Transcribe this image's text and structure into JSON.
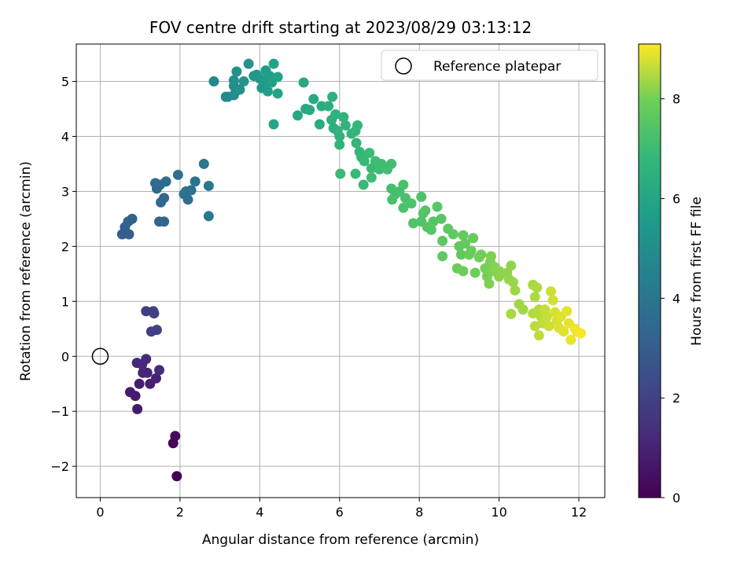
{
  "chart_data": {
    "type": "scatter",
    "title": "FOV centre drift starting at 2023/08/29 03:13:12",
    "xlabel": "Angular distance from reference (arcmin)",
    "ylabel": "Rotation from reference (arcmin)",
    "xlim": [
      -0.6,
      12.65
    ],
    "ylim": [
      -2.57,
      5.68
    ],
    "xticks": [
      0,
      2,
      4,
      6,
      8,
      10,
      12
    ],
    "yticks": [
      -2,
      -1,
      0,
      1,
      2,
      3,
      4,
      5
    ],
    "xtick_labels": [
      "0",
      "2",
      "4",
      "6",
      "8",
      "10",
      "12"
    ],
    "ytick_labels": [
      "−2",
      "−1",
      "0",
      "1",
      "2",
      "3",
      "4",
      "5"
    ],
    "grid": true,
    "legend": {
      "placement": "top-right",
      "entries": [
        "Reference platepar"
      ]
    },
    "reference_point": {
      "x": 0,
      "y": 0,
      "label": "Reference platepar"
    },
    "colorbar": {
      "label": "Hours from first FF file",
      "range": [
        0,
        9.1
      ],
      "ticks": [
        0,
        2,
        4,
        6,
        8
      ],
      "tick_labels": [
        "0",
        "2",
        "4",
        "6",
        "8"
      ],
      "colormap": "viridis"
    },
    "points": [
      [
        1.92,
        -2.18,
        0.0
      ],
      [
        1.83,
        -1.58,
        0.15
      ],
      [
        1.88,
        -1.45,
        0.2
      ],
      [
        0.93,
        -0.96,
        0.7
      ],
      [
        0.88,
        -0.72,
        0.75
      ],
      [
        0.75,
        -0.65,
        0.8
      ],
      [
        0.98,
        -0.5,
        0.85
      ],
      [
        1.25,
        -0.5,
        0.9
      ],
      [
        1.4,
        -0.4,
        0.95
      ],
      [
        1.07,
        -0.3,
        1.0
      ],
      [
        1.18,
        -0.3,
        1.05
      ],
      [
        0.92,
        -0.12,
        1.1
      ],
      [
        1.05,
        -0.15,
        1.15
      ],
      [
        1.15,
        -0.05,
        1.2
      ],
      [
        1.48,
        -0.25,
        1.25
      ],
      [
        1.15,
        0.82,
        1.8
      ],
      [
        1.33,
        0.82,
        1.85
      ],
      [
        1.35,
        0.78,
        1.9
      ],
      [
        1.28,
        0.45,
        1.95
      ],
      [
        1.42,
        0.48,
        2.0
      ],
      [
        0.55,
        2.22,
        3.0
      ],
      [
        0.72,
        2.22,
        3.05
      ],
      [
        0.62,
        2.35,
        3.1
      ],
      [
        0.7,
        2.45,
        3.15
      ],
      [
        0.8,
        2.5,
        3.2
      ],
      [
        1.48,
        2.45,
        3.3
      ],
      [
        1.6,
        2.45,
        3.35
      ],
      [
        1.52,
        2.8,
        3.4
      ],
      [
        1.6,
        2.88,
        3.45
      ],
      [
        1.42,
        3.05,
        3.5
      ],
      [
        1.5,
        3.12,
        3.55
      ],
      [
        1.38,
        3.15,
        3.6
      ],
      [
        1.65,
        3.18,
        3.65
      ],
      [
        1.95,
        3.3,
        3.7
      ],
      [
        2.1,
        2.95,
        3.75
      ],
      [
        2.2,
        2.85,
        3.8
      ],
      [
        2.15,
        3.0,
        3.85
      ],
      [
        2.28,
        3.02,
        3.9
      ],
      [
        2.38,
        3.18,
        3.95
      ],
      [
        2.72,
        3.1,
        4.0
      ],
      [
        2.6,
        3.5,
        4.05
      ],
      [
        2.72,
        2.55,
        4.1
      ],
      [
        2.85,
        5.0,
        4.8
      ],
      [
        3.15,
        4.72,
        4.85
      ],
      [
        3.2,
        4.72,
        4.9
      ],
      [
        3.35,
        4.75,
        4.95
      ],
      [
        3.4,
        4.82,
        5.0
      ],
      [
        3.35,
        4.92,
        5.05
      ],
      [
        3.5,
        4.85,
        5.1
      ],
      [
        3.35,
        5.02,
        5.15
      ],
      [
        3.42,
        5.18,
        5.2
      ],
      [
        3.6,
        5.0,
        5.25
      ],
      [
        3.72,
        5.32,
        5.3
      ],
      [
        3.85,
        5.1,
        5.35
      ],
      [
        3.92,
        5.12,
        5.4
      ],
      [
        4.0,
        5.05,
        5.45
      ],
      [
        4.05,
        4.88,
        5.5
      ],
      [
        4.1,
        5.02,
        5.55
      ],
      [
        4.15,
        5.2,
        5.6
      ],
      [
        4.18,
        4.95,
        5.65
      ],
      [
        4.2,
        4.82,
        5.7
      ],
      [
        4.25,
        5.1,
        5.75
      ],
      [
        4.3,
        4.98,
        5.8
      ],
      [
        4.35,
        5.32,
        5.85
      ],
      [
        4.45,
        5.08,
        5.9
      ],
      [
        4.45,
        4.78,
        5.95
      ],
      [
        4.35,
        4.22,
        6.0
      ],
      [
        4.95,
        4.38,
        6.05
      ],
      [
        5.1,
        4.98,
        6.1
      ],
      [
        5.15,
        4.5,
        6.15
      ],
      [
        5.25,
        4.48,
        6.2
      ],
      [
        5.35,
        4.68,
        6.25
      ],
      [
        5.5,
        4.22,
        6.3
      ],
      [
        5.55,
        4.55,
        6.35
      ],
      [
        5.72,
        4.55,
        6.4
      ],
      [
        5.82,
        4.72,
        6.45
      ],
      [
        5.8,
        4.3,
        6.5
      ],
      [
        5.85,
        4.15,
        6.52
      ],
      [
        5.9,
        4.4,
        6.55
      ],
      [
        5.95,
        4.1,
        6.58
      ],
      [
        6.0,
        4.0,
        6.6
      ],
      [
        6.0,
        3.85,
        6.63
      ],
      [
        6.1,
        4.35,
        6.65
      ],
      [
        6.15,
        4.2,
        6.68
      ],
      [
        6.3,
        4.05,
        6.7
      ],
      [
        6.4,
        4.1,
        6.72
      ],
      [
        6.42,
        3.88,
        6.75
      ],
      [
        6.45,
        4.2,
        6.78
      ],
      [
        6.5,
        3.72,
        6.8
      ],
      [
        6.55,
        3.62,
        6.82
      ],
      [
        6.62,
        3.55,
        6.85
      ],
      [
        6.4,
        3.32,
        6.87
      ],
      [
        6.02,
        3.32,
        6.9
      ],
      [
        6.6,
        3.12,
        6.92
      ],
      [
        6.75,
        3.7,
        6.95
      ],
      [
        6.8,
        3.42,
        6.97
      ],
      [
        6.9,
        3.55,
        7.0
      ],
      [
        7.0,
        3.4,
        7.02
      ],
      [
        7.05,
        3.5,
        7.05
      ],
      [
        6.8,
        3.25,
        7.07
      ],
      [
        7.2,
        3.4,
        7.1
      ],
      [
        7.3,
        3.5,
        7.12
      ],
      [
        7.3,
        3.05,
        7.15
      ],
      [
        7.4,
        2.95,
        7.17
      ],
      [
        7.5,
        3.0,
        7.2
      ],
      [
        7.32,
        2.85,
        7.22
      ],
      [
        7.6,
        3.12,
        7.25
      ],
      [
        7.65,
        2.88,
        7.27
      ],
      [
        7.6,
        2.7,
        7.3
      ],
      [
        7.8,
        2.78,
        7.32
      ],
      [
        7.85,
        2.42,
        7.35
      ],
      [
        8.05,
        2.9,
        7.37
      ],
      [
        8.1,
        2.6,
        7.4
      ],
      [
        8.05,
        2.45,
        7.42
      ],
      [
        8.15,
        2.65,
        7.45
      ],
      [
        8.2,
        2.35,
        7.47
      ],
      [
        8.3,
        2.3,
        7.5
      ],
      [
        8.35,
        2.45,
        7.52
      ],
      [
        8.45,
        2.72,
        7.55
      ],
      [
        8.55,
        2.5,
        7.57
      ],
      [
        8.58,
        2.1,
        7.6
      ],
      [
        8.72,
        2.32,
        7.62
      ],
      [
        8.85,
        2.22,
        7.65
      ],
      [
        8.58,
        1.82,
        7.67
      ],
      [
        9.0,
        2.0,
        7.7
      ],
      [
        9.05,
        1.85,
        7.72
      ],
      [
        9.1,
        2.2,
        7.75
      ],
      [
        9.15,
        2.05,
        7.77
      ],
      [
        9.3,
        1.92,
        7.8
      ],
      [
        9.35,
        2.15,
        7.82
      ],
      [
        9.25,
        1.85,
        7.85
      ],
      [
        8.95,
        1.6,
        7.87
      ],
      [
        9.1,
        1.55,
        7.9
      ],
      [
        9.4,
        1.52,
        7.92
      ],
      [
        9.5,
        1.8,
        7.95
      ],
      [
        9.55,
        1.85,
        7.97
      ],
      [
        9.65,
        1.6,
        8.0
      ],
      [
        9.7,
        1.45,
        8.02
      ],
      [
        9.78,
        1.72,
        8.05
      ],
      [
        9.8,
        1.82,
        8.07
      ],
      [
        9.75,
        1.32,
        8.1
      ],
      [
        9.85,
        1.55,
        8.12
      ],
      [
        9.9,
        1.62,
        8.15
      ],
      [
        10.0,
        1.55,
        8.17
      ],
      [
        10.0,
        1.45,
        8.2
      ],
      [
        10.2,
        1.52,
        8.22
      ],
      [
        10.3,
        1.65,
        8.25
      ],
      [
        10.25,
        1.4,
        8.27
      ],
      [
        10.35,
        1.35,
        8.3
      ],
      [
        10.4,
        1.2,
        8.32
      ],
      [
        10.5,
        0.95,
        8.35
      ],
      [
        10.6,
        0.85,
        8.37
      ],
      [
        10.3,
        0.77,
        8.4
      ],
      [
        10.85,
        1.3,
        8.42
      ],
      [
        10.9,
        1.08,
        8.45
      ],
      [
        10.95,
        1.25,
        8.47
      ],
      [
        10.85,
        0.78,
        8.5
      ],
      [
        11.0,
        0.85,
        8.52
      ],
      [
        11.05,
        0.72,
        8.55
      ],
      [
        10.9,
        0.55,
        8.57
      ],
      [
        11.0,
        0.38,
        8.6
      ],
      [
        11.1,
        0.6,
        8.62
      ],
      [
        11.15,
        0.85,
        8.65
      ],
      [
        11.2,
        0.72,
        8.67
      ],
      [
        11.25,
        0.55,
        8.7
      ],
      [
        11.3,
        1.18,
        8.72
      ],
      [
        11.35,
        1.02,
        8.75
      ],
      [
        11.4,
        0.8,
        8.77
      ],
      [
        11.45,
        0.65,
        8.8
      ],
      [
        11.5,
        0.52,
        8.82
      ],
      [
        11.55,
        0.72,
        8.85
      ],
      [
        11.62,
        0.45,
        8.87
      ],
      [
        11.7,
        0.82,
        8.9
      ],
      [
        11.75,
        0.6,
        8.92
      ],
      [
        11.8,
        0.3,
        8.95
      ],
      [
        11.9,
        0.5,
        8.97
      ],
      [
        11.95,
        0.45,
        9.0
      ],
      [
        12.05,
        0.42,
        9.05
      ]
    ]
  }
}
